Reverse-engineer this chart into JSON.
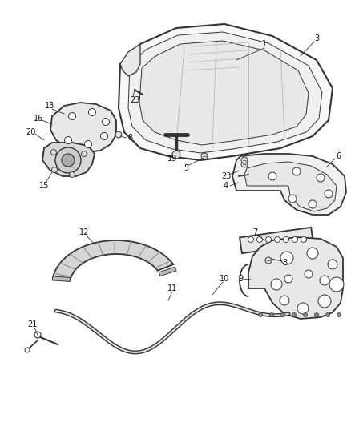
{
  "bg_color": "#ffffff",
  "line_color": "#333333",
  "lw_main": 1.3,
  "lw_thin": 0.7,
  "label_fs": 7.0
}
